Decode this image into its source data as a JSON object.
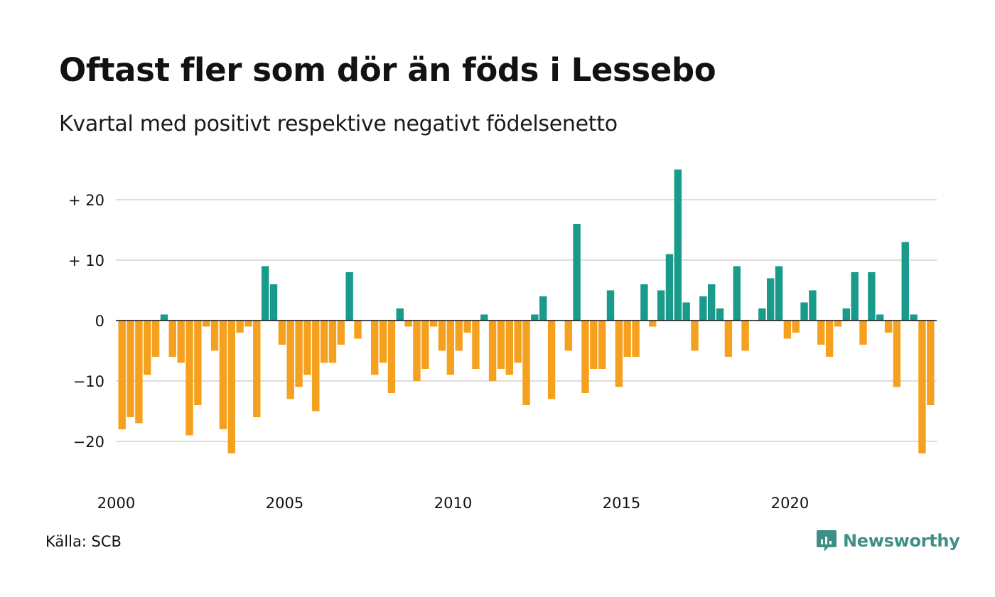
{
  "title": "Oftast fler som dör än föds i Lessebo",
  "subtitle": "Kvartal med positivt respektive negativt födelsenetto",
  "source": "Källa: SCB",
  "brand": {
    "name": "Newsworthy",
    "icon": "newsworthy-logo-icon"
  },
  "colors": {
    "positive": "#1a9a8a",
    "negative": "#f5a11f",
    "grid": "#dddddd",
    "zero_line": "#111111",
    "brand": "#3f8f85"
  },
  "chart_data": {
    "type": "bar",
    "title": "Oftast fler som dör än föds i Lessebo",
    "subtitle": "Kvartal med positivt respektive negativt födelsenetto",
    "x_start": "2000-Q1",
    "x_ticks": [
      "2000",
      "2005",
      "2010",
      "2015",
      "2020"
    ],
    "y_ticks": [
      "+ 20",
      "+ 10",
      "0",
      "−10",
      "−20"
    ],
    "y_tick_values": [
      20,
      10,
      0,
      -10,
      -20
    ],
    "ylim": [
      -25,
      25
    ],
    "grid": true,
    "values": [
      -18,
      -16,
      -17,
      -9,
      -6,
      1,
      -6,
      -7,
      -19,
      -14,
      -1,
      -5,
      -18,
      -22,
      -2,
      -1,
      -16,
      9,
      6,
      -4,
      -13,
      -11,
      -9,
      -15,
      -7,
      -7,
      -4,
      8,
      -3,
      0,
      -9,
      -7,
      -12,
      2,
      -1,
      -10,
      -8,
      -1,
      -5,
      -9,
      -5,
      -2,
      -8,
      1,
      -10,
      -8,
      -9,
      -7,
      -14,
      1,
      4,
      -13,
      0,
      -5,
      16,
      -12,
      -8,
      -8,
      5,
      -11,
      -6,
      -6,
      6,
      -1,
      5,
      11,
      25,
      3,
      -5,
      4,
      6,
      2,
      -6,
      9,
      -5,
      0,
      2,
      7,
      9,
      -3,
      -2,
      3,
      5,
      -4,
      -6,
      -1,
      2,
      8,
      -4,
      8,
      1,
      -2,
      -11,
      13,
      1,
      -22,
      -14
    ]
  }
}
